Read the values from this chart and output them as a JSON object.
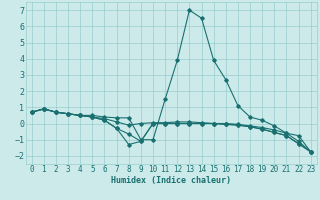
{
  "xlabel": "Humidex (Indice chaleur)",
  "background_color": "#cceaea",
  "grid_color": "#99cccc",
  "line_color": "#1a7070",
  "xlim": [
    -0.5,
    23.5
  ],
  "ylim": [
    -2.5,
    7.5
  ],
  "xticks": [
    0,
    1,
    2,
    3,
    4,
    5,
    6,
    7,
    8,
    9,
    10,
    11,
    12,
    13,
    14,
    15,
    16,
    17,
    18,
    19,
    20,
    21,
    22,
    23
  ],
  "yticks": [
    -2,
    -1,
    0,
    1,
    2,
    3,
    4,
    5,
    6,
    7
  ],
  "series": [
    [
      0.7,
      0.9,
      0.7,
      0.6,
      0.5,
      0.5,
      0.4,
      0.35,
      0.35,
      -1.0,
      -1.0,
      1.5,
      3.9,
      7.0,
      6.5,
      3.9,
      2.7,
      1.1,
      0.4,
      0.2,
      -0.15,
      -0.6,
      -0.75,
      -1.75
    ],
    [
      0.7,
      0.9,
      0.7,
      0.6,
      0.5,
      0.4,
      0.3,
      0.1,
      -0.1,
      0.0,
      0.05,
      0.05,
      0.1,
      0.1,
      0.05,
      0.0,
      0.0,
      -0.05,
      -0.15,
      -0.25,
      -0.4,
      -0.6,
      -1.1,
      -1.75
    ],
    [
      0.7,
      0.9,
      0.7,
      0.6,
      0.5,
      0.4,
      0.2,
      -0.3,
      -0.65,
      -1.1,
      0.0,
      0.0,
      0.0,
      0.0,
      0.0,
      0.0,
      -0.05,
      -0.1,
      -0.2,
      -0.35,
      -0.55,
      -0.75,
      -1.25,
      -1.75
    ],
    [
      0.7,
      0.9,
      0.7,
      0.6,
      0.5,
      0.4,
      0.2,
      -0.3,
      -1.3,
      -1.1,
      0.0,
      0.0,
      0.0,
      0.0,
      0.0,
      0.0,
      -0.05,
      -0.1,
      -0.2,
      -0.35,
      -0.55,
      -0.75,
      -1.25,
      -1.75
    ]
  ]
}
